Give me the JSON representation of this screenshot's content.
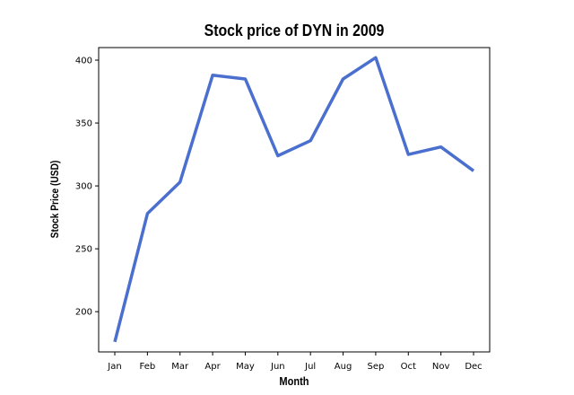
{
  "chart_data": {
    "type": "line",
    "title": "Stock price of DYN in 2009",
    "xlabel": "Month",
    "ylabel": "Stock Price (USD)",
    "categories": [
      "Jan",
      "Feb",
      "Mar",
      "Apr",
      "May",
      "Jun",
      "Jul",
      "Aug",
      "Sep",
      "Oct",
      "Nov",
      "Dec"
    ],
    "series": [
      {
        "values": [
          176,
          278,
          303,
          388,
          385,
          324,
          336,
          385,
          402,
          325,
          331,
          312
        ]
      }
    ],
    "ylim": [
      168,
      410
    ],
    "yticks": [
      200,
      250,
      300,
      350,
      400
    ],
    "grid": false,
    "line_color": "#4a6fce"
  }
}
